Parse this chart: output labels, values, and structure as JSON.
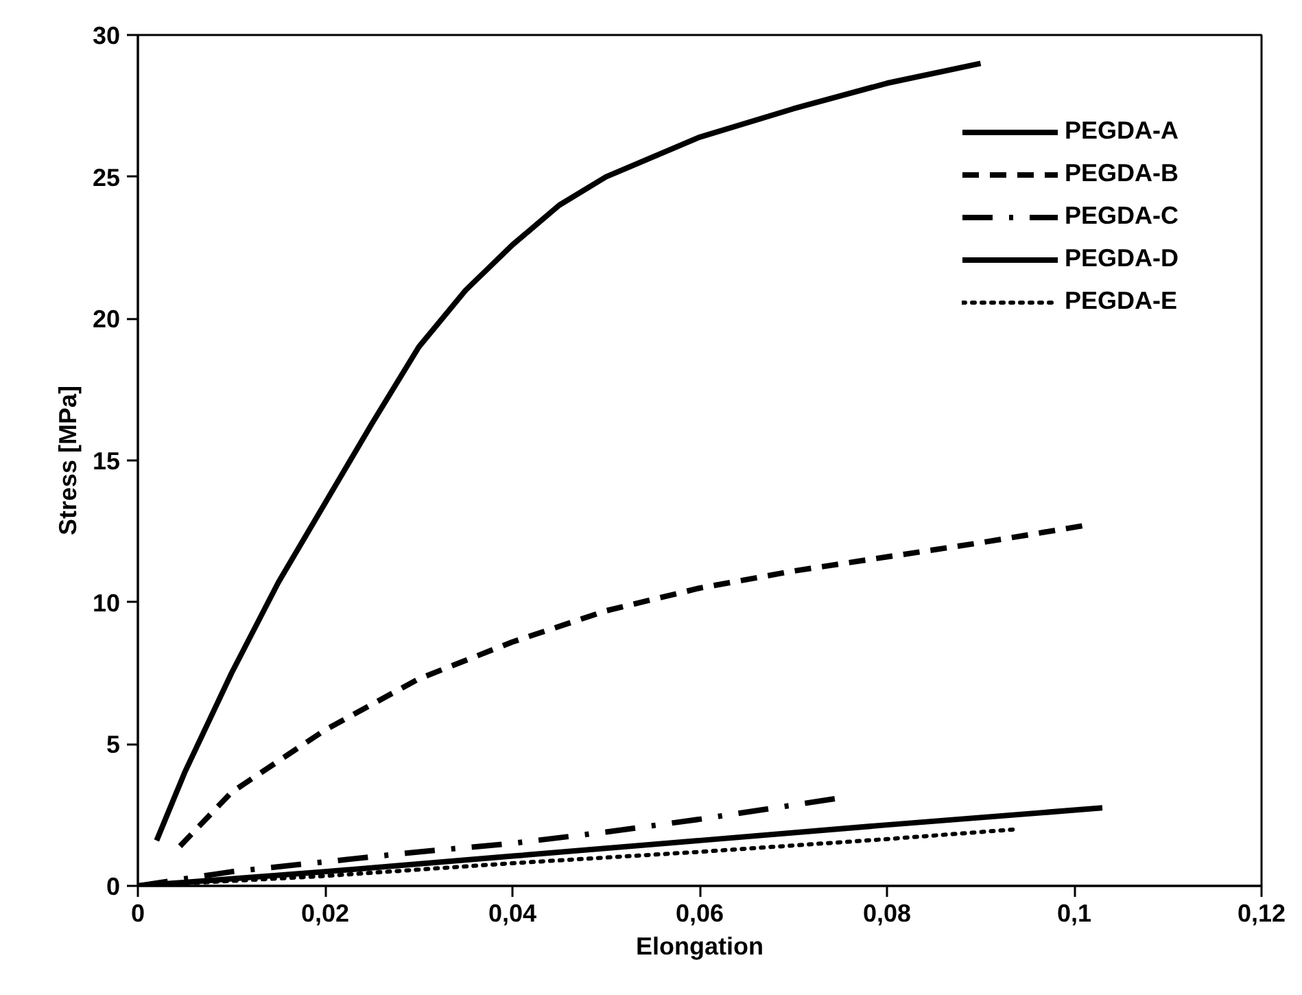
{
  "chart_data": {
    "type": "line",
    "xlabel": "Elongation",
    "ylabel": "Stress [MPa]",
    "xlim": [
      0,
      0.12
    ],
    "ylim": [
      0,
      30
    ],
    "xticks": [
      0,
      {
        "value": 0.02,
        "label": "0,02"
      },
      {
        "value": 0.04,
        "label": "0,04"
      },
      {
        "value": 0.06,
        "label": "0,06"
      },
      {
        "value": 0.08,
        "label": "0,08"
      },
      {
        "value": 0.1,
        "label": "0,1"
      },
      {
        "value": 0.12,
        "label": "0,12"
      }
    ],
    "yticks": [
      0,
      5,
      10,
      15,
      20,
      25,
      30
    ],
    "grid": false,
    "legend": "top right",
    "marker": "none",
    "series": [
      {
        "name": "PEGDA-A",
        "color": "#000000",
        "line_style": "solid",
        "x": [
          0.002,
          0.005,
          0.01,
          0.015,
          0.02,
          0.025,
          0.03,
          0.035,
          0.04,
          0.045,
          0.05,
          0.06,
          0.07,
          0.08,
          0.09
        ],
        "values": [
          1.6,
          4.0,
          7.5,
          10.7,
          13.5,
          16.3,
          19.0,
          21.0,
          22.6,
          24.0,
          25.0,
          26.4,
          27.4,
          28.3,
          29.0
        ]
      },
      {
        "name": "PEGDA-B",
        "color": "#000000",
        "line_style": "dashed",
        "x": [
          0.0045,
          0.01,
          0.02,
          0.03,
          0.04,
          0.05,
          0.06,
          0.07,
          0.08,
          0.09,
          0.101
        ],
        "values": [
          1.4,
          3.3,
          5.5,
          7.3,
          8.6,
          9.7,
          10.5,
          11.1,
          11.6,
          12.1,
          12.7
        ]
      },
      {
        "name": "PEGDA-C",
        "color": "#000000",
        "line_style": "dashdot",
        "x": [
          0,
          0.01,
          0.02,
          0.03,
          0.04,
          0.05,
          0.06,
          0.075
        ],
        "values": [
          0,
          0.5,
          0.85,
          1.2,
          1.5,
          1.9,
          2.35,
          3.1
        ]
      },
      {
        "name": "PEGDA-D",
        "color": "#000000",
        "line_style": "solid",
        "x": [
          0,
          0.02,
          0.04,
          0.06,
          0.08,
          0.103
        ],
        "values": [
          0,
          0.5,
          1.05,
          1.6,
          2.15,
          2.75
        ]
      },
      {
        "name": "PEGDA-E",
        "color": "#000000",
        "line_style": "dotted",
        "x": [
          0,
          0.02,
          0.04,
          0.06,
          0.08,
          0.094
        ],
        "values": [
          0,
          0.35,
          0.8,
          1.2,
          1.65,
          2.0
        ]
      }
    ]
  }
}
